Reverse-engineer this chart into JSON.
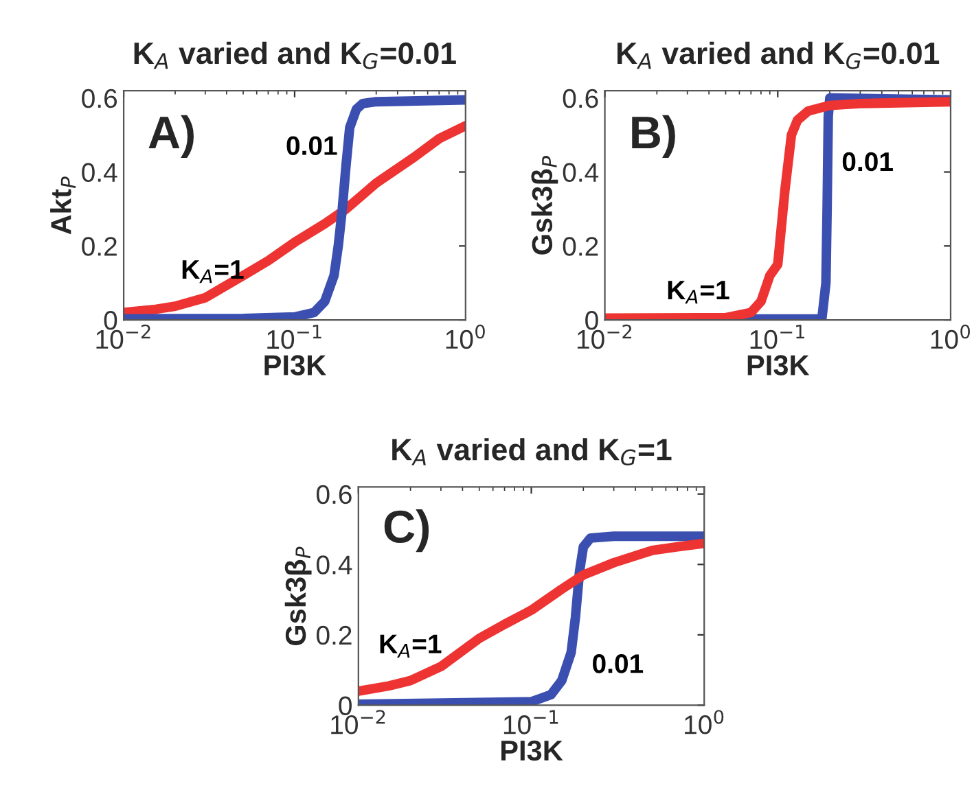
{
  "chart_data": [
    {
      "type": "line",
      "title": "K$_{A}$ varied and K$_{G}$=0.01",
      "xlabel": "PI3K",
      "ylabel": "Akt$_{P}$",
      "log": "x",
      "xlim": [
        0.01,
        1
      ],
      "ylim": [
        0,
        0.62
      ],
      "xticks": [
        {
          "value": 0.01,
          "label": "10$^{−2}$"
        },
        {
          "value": 0.1,
          "label": "10$^{−1}$"
        },
        {
          "value": 1,
          "label": "10$^{0}$"
        }
      ],
      "yticks": [
        0,
        0.2,
        0.4,
        0.6
      ],
      "annotations": [
        "A)"
      ],
      "series": [
        {
          "name": "K$_{A}$=1",
          "color": "#ee3333",
          "x": [
            0.01,
            0.015,
            0.02,
            0.03,
            0.05,
            0.07,
            0.1,
            0.15,
            0.2,
            0.3,
            0.5,
            0.7,
            1
          ],
          "values": [
            0.02,
            0.028,
            0.037,
            0.06,
            0.12,
            0.16,
            0.21,
            0.26,
            0.3,
            0.37,
            0.44,
            0.49,
            0.525
          ]
        },
        {
          "name": "0.01",
          "color": "#3a4fb0",
          "x": [
            0.01,
            0.05,
            0.1,
            0.13,
            0.15,
            0.17,
            0.18,
            0.19,
            0.2,
            0.21,
            0.23,
            0.25,
            0.3,
            1
          ],
          "values": [
            0.003,
            0.004,
            0.008,
            0.02,
            0.05,
            0.12,
            0.2,
            0.3,
            0.42,
            0.52,
            0.57,
            0.585,
            0.59,
            0.595
          ]
        }
      ]
    },
    {
      "type": "line",
      "title": "K$_{A}$ varied and K$_{G}$=0.01",
      "xlabel": "PI3K",
      "ylabel": "Gsk3β$_{P}$",
      "log": "x",
      "xlim": [
        0.01,
        1
      ],
      "ylim": [
        0,
        0.62
      ],
      "xticks": [
        {
          "value": 0.01,
          "label": "10$^{−2}$"
        },
        {
          "value": 0.1,
          "label": "10$^{−1}$"
        },
        {
          "value": 1,
          "label": "10$^{0}$"
        }
      ],
      "yticks": [
        0,
        0.2,
        0.4,
        0.6
      ],
      "annotations": [
        "B)"
      ],
      "series": [
        {
          "name": "0.01",
          "color": "#3a4fb0",
          "x": [
            0.01,
            0.18,
            0.19,
            0.193,
            0.196,
            0.2,
            1
          ],
          "values": [
            0.002,
            0.003,
            0.1,
            0.3,
            0.55,
            0.6,
            0.595
          ]
        },
        {
          "name": "K$_{A}$=1",
          "color": "#ee3333",
          "x": [
            0.01,
            0.05,
            0.07,
            0.08,
            0.09,
            0.1,
            0.11,
            0.12,
            0.13,
            0.15,
            0.2,
            0.3,
            1
          ],
          "values": [
            0.005,
            0.006,
            0.02,
            0.05,
            0.12,
            0.15,
            0.35,
            0.5,
            0.54,
            0.565,
            0.58,
            0.585,
            0.59
          ]
        }
      ]
    },
    {
      "type": "line",
      "title": "K$_{A}$ varied and K$_{G}$=1",
      "xlabel": "PI3K",
      "ylabel": "Gsk3β$_{P}$",
      "log": "x",
      "xlim": [
        0.01,
        1
      ],
      "ylim": [
        0,
        0.62
      ],
      "xticks": [
        {
          "value": 0.01,
          "label": "10$^{−2}$"
        },
        {
          "value": 0.1,
          "label": "10$^{−1}$"
        },
        {
          "value": 1,
          "label": "10$^{0}$"
        }
      ],
      "yticks": [
        0,
        0.2,
        0.4,
        0.6
      ],
      "annotations": [
        "C)"
      ],
      "series": [
        {
          "name": "0.01",
          "color": "#3a4fb0",
          "x": [
            0.01,
            0.1,
            0.13,
            0.15,
            0.17,
            0.18,
            0.19,
            0.2,
            0.22,
            0.3,
            1
          ],
          "values": [
            0.003,
            0.01,
            0.03,
            0.07,
            0.15,
            0.25,
            0.38,
            0.45,
            0.475,
            0.48,
            0.48
          ]
        },
        {
          "name": "K$_{A}$=1",
          "color": "#ee3333",
          "x": [
            0.01,
            0.015,
            0.02,
            0.03,
            0.05,
            0.07,
            0.1,
            0.15,
            0.2,
            0.3,
            0.5,
            0.7,
            1
          ],
          "values": [
            0.04,
            0.055,
            0.07,
            0.11,
            0.19,
            0.23,
            0.27,
            0.33,
            0.37,
            0.405,
            0.44,
            0.45,
            0.46
          ]
        }
      ]
    }
  ]
}
